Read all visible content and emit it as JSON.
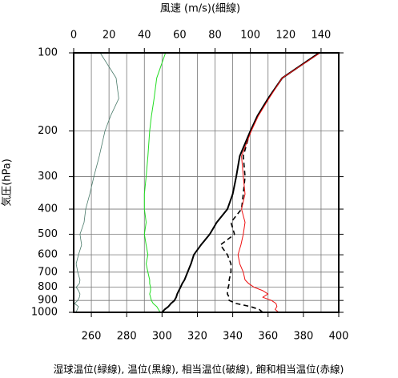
{
  "chart_data": {
    "type": "profile",
    "title": "風速 (m/s)(細線)",
    "xlabel": "湿球温位(緑線), 温位(黒線), 相当温位(破線), 飽和相当温位(赤線)",
    "ylabel": "気圧(hPa)",
    "y": [
      1000,
      975,
      950,
      925,
      900,
      875,
      850,
      825,
      800,
      775,
      750,
      700,
      650,
      600,
      550,
      500,
      450,
      400,
      350,
      300,
      250,
      200,
      175,
      150,
      125,
      100
    ],
    "ylim": [
      1000,
      100
    ],
    "yscale": "log",
    "yticks": [
      100,
      200,
      300,
      400,
      500,
      600,
      700,
      800,
      900,
      1000
    ],
    "xlim": [
      250,
      400
    ],
    "xticks": [
      260,
      280,
      300,
      320,
      340,
      360,
      380,
      400
    ],
    "x2lim": [
      0,
      150
    ],
    "x2ticks": [
      0,
      20,
      40,
      60,
      80,
      100,
      120,
      140
    ],
    "grid": true,
    "series": [
      {
        "name": "湿球温位",
        "color": "#22dd22",
        "style": "solid",
        "width": 1,
        "values": [
          299,
          298,
          297,
          295,
          294,
          293.5,
          293,
          293.5,
          293.5,
          293,
          293,
          292,
          291,
          292,
          291,
          290,
          291,
          290,
          290,
          291,
          292,
          293,
          294,
          295.5,
          297,
          302
        ]
      },
      {
        "name": "温位",
        "color": "#000000",
        "style": "solid",
        "width": 2,
        "values": [
          300,
          301.5,
          303.6,
          305,
          307,
          308,
          308.6,
          309.5,
          310.5,
          311.4,
          312.7,
          314.5,
          316.4,
          318,
          322,
          327,
          331,
          337,
          340,
          342,
          344,
          350,
          354,
          360,
          368,
          389
        ]
      },
      {
        "name": "相当温位",
        "color": "#000000",
        "style": "dashed",
        "width": 1.6,
        "values": [
          357,
          355,
          350,
          342,
          338,
          338,
          337,
          337,
          337.5,
          338,
          338,
          339,
          339,
          337,
          333,
          341,
          339,
          345,
          346,
          347,
          346,
          350,
          354,
          360,
          368,
          389
        ]
      },
      {
        "name": "飽和相当温位",
        "color": "#ee1111",
        "style": "solid",
        "width": 1,
        "values": [
          366,
          364,
          365,
          364.5,
          362,
          357,
          360,
          357,
          352,
          349,
          347,
          346,
          344,
          343,
          344.6,
          346,
          347,
          345,
          347,
          346,
          345,
          350.5,
          354.5,
          360.5,
          368,
          389.5
        ]
      },
      {
        "name": "風速",
        "color": "#4a7a6a",
        "style": "solid",
        "width": 0.8,
        "axis": "x2",
        "values": [
          1.4,
          2,
          2.7,
          0.5,
          2.3,
          3.2,
          3.6,
          2.7,
          1.4,
          3.2,
          3.6,
          2.3,
          1.4,
          2.7,
          4.5,
          3.6,
          5.9,
          6.8,
          9.1,
          11.4,
          14.5,
          17.7,
          20.9,
          25.5,
          24,
          15
        ]
      }
    ]
  }
}
